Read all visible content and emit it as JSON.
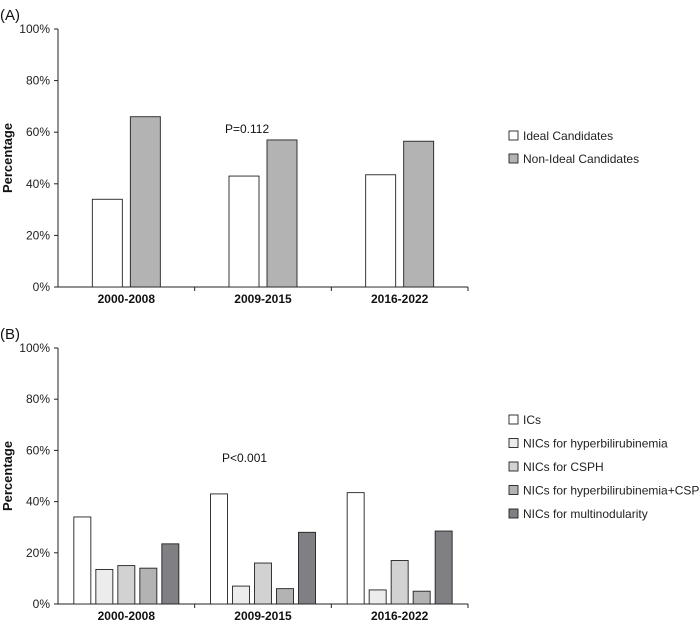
{
  "chart_data": [
    {
      "type": "bar",
      "panel_label": "(A)",
      "ylabel": "Percentage",
      "ylim": [
        0,
        100
      ],
      "yticks": [
        "0%",
        "20%",
        "40%",
        "60%",
        "80%",
        "100%"
      ],
      "categories": [
        "2000-2008",
        "2009-2015",
        "2016-2022"
      ],
      "annotation": "P=0.112",
      "series": [
        {
          "name": "Ideal Candidates",
          "color": "#ffffff",
          "values": [
            34,
            43,
            43.5
          ]
        },
        {
          "name": "Non-Ideal Candidates",
          "color": "#b3b3b3",
          "values": [
            66,
            57,
            56.5
          ]
        }
      ],
      "legend": "right"
    },
    {
      "type": "bar",
      "panel_label": "(B)",
      "ylabel": "Percentage",
      "ylim": [
        0,
        100
      ],
      "yticks": [
        "0%",
        "20%",
        "40%",
        "60%",
        "80%",
        "100%"
      ],
      "categories": [
        "2000-2008",
        "2009-2015",
        "2016-2022"
      ],
      "annotation": "P<0.001",
      "series": [
        {
          "name": "ICs",
          "color": "#ffffff",
          "values": [
            34,
            43,
            43.5
          ]
        },
        {
          "name": "NICs for hyperbilirubinemia",
          "color": "#ececec",
          "values": [
            13.5,
            7,
            5.5
          ]
        },
        {
          "name": "NICs for CSPH",
          "color": "#d2d2d2",
          "values": [
            15,
            16,
            17
          ]
        },
        {
          "name": "NICs for hyperbilirubinemia+CSPH",
          "color": "#b3b3b3",
          "values": [
            14,
            6,
            5
          ]
        },
        {
          "name": "NICs for multinodularity",
          "color": "#7f7f84",
          "values": [
            23.5,
            28,
            28.5
          ]
        }
      ],
      "legend": "right"
    }
  ]
}
